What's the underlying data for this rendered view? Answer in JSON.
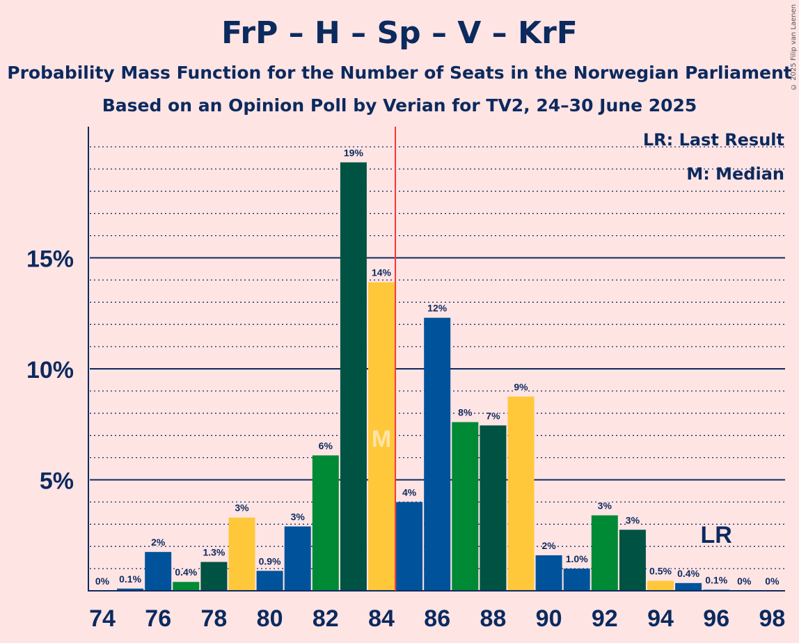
{
  "title": "FrP – H – Sp – V – KrF",
  "subtitle": "Probability Mass Function for the Number of Seats in the Norwegian Parliament",
  "subtitle2": "Based on an Opinion Poll by Verian for TV2, 24–30 June 2025",
  "copyright": "© 2025 Filip van Laenen",
  "legend": {
    "lr": "LR: Last Result",
    "m": "M: Median"
  },
  "markers": {
    "median_label": "M",
    "lr_label": "LR",
    "median_seat": 84,
    "last_result_seat": 96,
    "majority_line_seat": 84.5
  },
  "colors": {
    "background": "#ffe4e4",
    "text": "#0b2a5e",
    "frp_blue": "#00529b",
    "h_green": "#008a35",
    "sp_darkgreen": "#005243",
    "krf_yellow": "#ffc83a",
    "majority_line": "#ff3333"
  },
  "chart_data": {
    "type": "bar",
    "xlabel": "",
    "ylabel": "",
    "ylim": [
      0,
      20
    ],
    "y_ticks": [
      {
        "value": 5,
        "label": "5%"
      },
      {
        "value": 10,
        "label": "10%"
      },
      {
        "value": 15,
        "label": "15%"
      }
    ],
    "x_ticks": [
      74,
      76,
      78,
      80,
      82,
      84,
      86,
      88,
      90,
      92,
      94,
      96,
      98
    ],
    "grid": true,
    "bars": [
      {
        "seat": 74,
        "value": 0,
        "label": "0%",
        "color": "#00529b"
      },
      {
        "seat": 75,
        "value": 0.1,
        "label": "0.1%",
        "color": "#00529b"
      },
      {
        "seat": 76,
        "value": 1.75,
        "label": "2%",
        "color": "#00529b"
      },
      {
        "seat": 77,
        "value": 0.4,
        "label": "0.4%",
        "color": "#008a35"
      },
      {
        "seat": 78,
        "value": 1.3,
        "label": "1.3%",
        "color": "#005243"
      },
      {
        "seat": 79,
        "value": 3.3,
        "label": "3%",
        "color": "#ffc83a"
      },
      {
        "seat": 80,
        "value": 0.9,
        "label": "0.9%",
        "color": "#00529b"
      },
      {
        "seat": 81,
        "value": 2.9,
        "label": "3%",
        "color": "#00529b"
      },
      {
        "seat": 82,
        "value": 6.1,
        "label": "6%",
        "color": "#008a35"
      },
      {
        "seat": 83,
        "value": 19.3,
        "label": "19%",
        "color": "#005243"
      },
      {
        "seat": 84,
        "value": 13.9,
        "label": "14%",
        "color": "#ffc83a"
      },
      {
        "seat": 85,
        "value": 4.0,
        "label": "4%",
        "color": "#00529b"
      },
      {
        "seat": 86,
        "value": 12.3,
        "label": "12%",
        "color": "#00529b"
      },
      {
        "seat": 87,
        "value": 7.6,
        "label": "8%",
        "color": "#008a35"
      },
      {
        "seat": 88,
        "value": 7.45,
        "label": "7%",
        "color": "#005243"
      },
      {
        "seat": 89,
        "value": 8.75,
        "label": "9%",
        "color": "#ffc83a"
      },
      {
        "seat": 90,
        "value": 1.6,
        "label": "2%",
        "color": "#00529b"
      },
      {
        "seat": 91,
        "value": 1.0,
        "label": "1.0%",
        "color": "#00529b"
      },
      {
        "seat": 92,
        "value": 3.4,
        "label": "3%",
        "color": "#008a35"
      },
      {
        "seat": 93,
        "value": 2.75,
        "label": "3%",
        "color": "#005243"
      },
      {
        "seat": 94,
        "value": 0.45,
        "label": "0.5%",
        "color": "#ffc83a"
      },
      {
        "seat": 95,
        "value": 0.35,
        "label": "0.4%",
        "color": "#00529b"
      },
      {
        "seat": 96,
        "value": 0.05,
        "label": "0.1%",
        "color": "#00529b"
      },
      {
        "seat": 97,
        "value": 0,
        "label": "0%",
        "color": "#008a35"
      },
      {
        "seat": 98,
        "value": 0,
        "label": "0%",
        "color": "#005243"
      }
    ]
  }
}
